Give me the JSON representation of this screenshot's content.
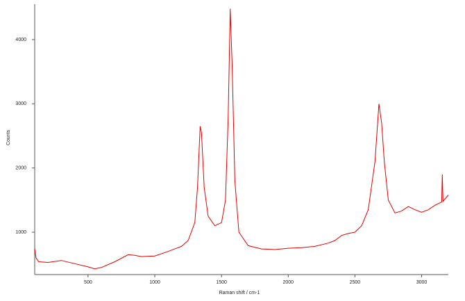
{
  "chart_data": {
    "type": "line",
    "x_label": "Raman shift / cm-1",
    "y_label": "Counts",
    "x": [
      100,
      110,
      130,
      200,
      300,
      400,
      500,
      550,
      600,
      700,
      800,
      850,
      900,
      1000,
      1100,
      1200,
      1250,
      1300,
      1320,
      1340,
      1350,
      1370,
      1400,
      1450,
      1500,
      1530,
      1550,
      1565,
      1580,
      1600,
      1630,
      1700,
      1800,
      1900,
      2000,
      2100,
      2200,
      2300,
      2350,
      2400,
      2450,
      2500,
      2550,
      2600,
      2650,
      2680,
      2700,
      2720,
      2750,
      2800,
      2850,
      2900,
      2950,
      3000,
      3050,
      3100,
      3150,
      3155,
      3160,
      3200
    ],
    "series": [
      {
        "name": "Counts",
        "color": "#e00000",
        "values": [
          750,
          600,
          540,
          530,
          560,
          510,
          460,
          430,
          450,
          540,
          650,
          640,
          620,
          630,
          700,
          780,
          870,
          1150,
          1700,
          2650,
          2550,
          1700,
          1250,
          1100,
          1150,
          1500,
          2800,
          4480,
          3600,
          1800,
          1000,
          790,
          740,
          730,
          750,
          760,
          780,
          830,
          870,
          950,
          980,
          1000,
          1100,
          1350,
          2100,
          3000,
          2700,
          2100,
          1500,
          1300,
          1330,
          1400,
          1350,
          1310,
          1350,
          1420,
          1470,
          1900,
          1480,
          1580
        ]
      }
    ],
    "xlim": [
      100,
      3200
    ],
    "ylim": [
      340,
      4530
    ],
    "xticks": [
      500,
      1000,
      1500,
      2000,
      2500,
      3000
    ],
    "yticks": [
      1000,
      2000,
      3000,
      4000
    ]
  }
}
